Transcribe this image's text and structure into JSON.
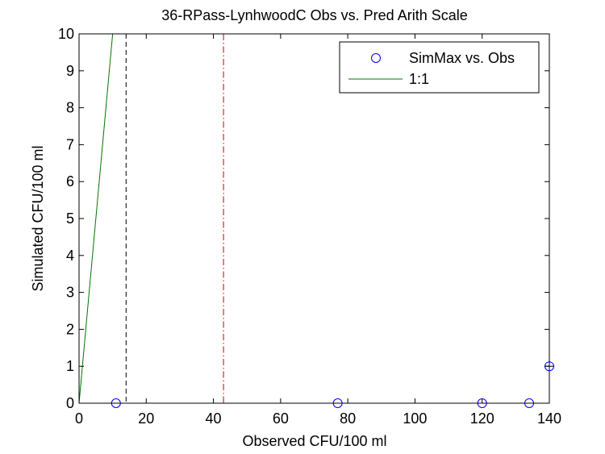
{
  "chart_data": {
    "type": "scatter",
    "title": "36-RPass-LynhwoodC Obs vs. Pred Arith Scale",
    "xlabel": "Observed CFU/100 ml",
    "ylabel": "Simulated CFU/100 ml",
    "xlim": [
      0,
      140
    ],
    "ylim": [
      0,
      10
    ],
    "xticks": [
      0,
      20,
      40,
      60,
      80,
      100,
      120,
      140
    ],
    "yticks": [
      0,
      1,
      2,
      3,
      4,
      5,
      6,
      7,
      8,
      9,
      10
    ],
    "grid": false,
    "legend_position": "top-right",
    "series": [
      {
        "name": "SimMax vs. Obs",
        "kind": "markers",
        "marker": "circle",
        "color": "#0000ff",
        "points": [
          [
            11,
            0
          ],
          [
            77,
            0
          ],
          [
            120,
            0
          ],
          [
            134,
            0
          ],
          [
            140,
            1
          ]
        ]
      },
      {
        "name": "1:1",
        "kind": "line",
        "color": "#007700",
        "points": [
          [
            0,
            0
          ],
          [
            10,
            10
          ]
        ]
      }
    ],
    "reference_lines": [
      {
        "x": 14,
        "style": "dashed",
        "color": "#000000"
      },
      {
        "x": 43,
        "style": "dashdot",
        "color": "#cc0000"
      }
    ],
    "extra_markers": [
      {
        "x": 140,
        "y": 1,
        "marker": "plus",
        "color": "#000000"
      }
    ]
  }
}
